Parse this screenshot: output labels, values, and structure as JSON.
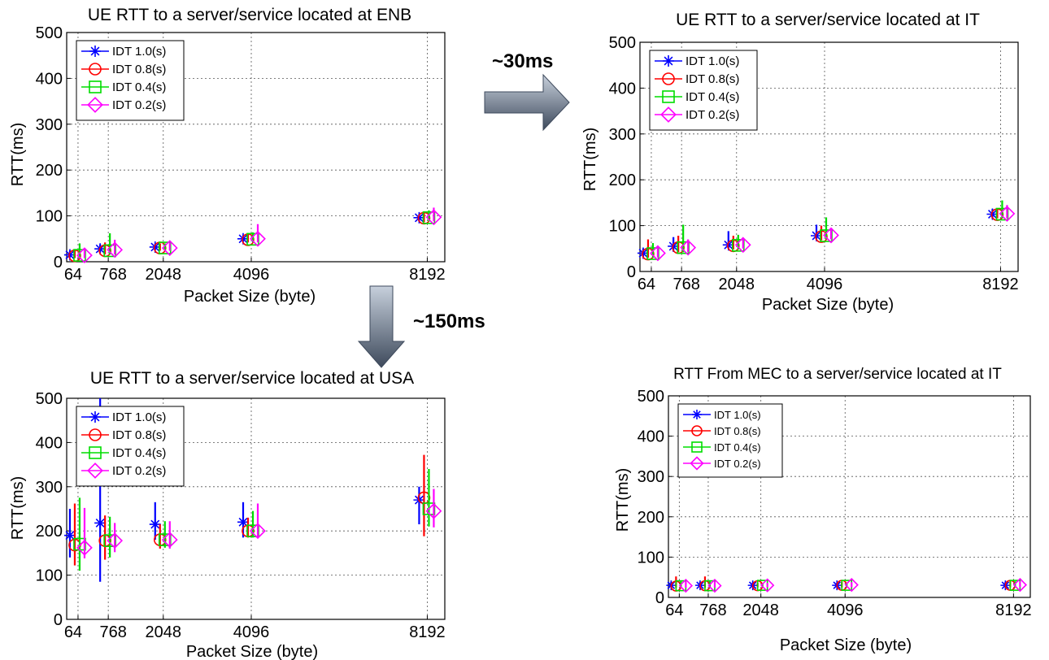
{
  "annotations": {
    "right_arrow_label": "~30ms",
    "down_arrow_label": "~150ms"
  },
  "colors": {
    "series": [
      "#0000ff",
      "#ff0000",
      "#00dd00",
      "#ff00ff"
    ],
    "arrow_fill_dark": "#3e4a5c",
    "arrow_fill_light": "#c7d0dc"
  },
  "chart_data": [
    {
      "id": "enb",
      "type": "scatter",
      "title": "UE  RTT to a server/service located at ENB",
      "xlabel": "Packet Size (byte)",
      "ylabel": "RTT(ms)",
      "xticks": [
        64,
        768,
        2048,
        4096,
        8192
      ],
      "xtick_labels": [
        "64",
        "768",
        "2048",
        "4096",
        "8192"
      ],
      "xlim": [
        -200,
        8600
      ],
      "ylim": [
        0,
        500
      ],
      "yticks": [
        0,
        100,
        200,
        300,
        400,
        500
      ],
      "grid": true,
      "legend_position": "top-left",
      "series": [
        {
          "name": "IDT 1.0(s)",
          "marker": "star",
          "x": [
            64,
            768,
            2048,
            4096,
            8192
          ],
          "y": [
            15,
            28,
            32,
            50,
            96
          ],
          "high": [
            24,
            38,
            38,
            58,
            104
          ],
          "low": [
            10,
            20,
            26,
            44,
            88
          ]
        },
        {
          "name": "IDT 0.8(s)",
          "marker": "circle",
          "x": [
            64,
            768,
            2048,
            4096,
            8192
          ],
          "y": [
            13,
            24,
            30,
            48,
            95
          ],
          "high": [
            26,
            42,
            40,
            60,
            110
          ],
          "low": [
            8,
            16,
            24,
            42,
            86
          ]
        },
        {
          "name": "IDT 0.4(s)",
          "marker": "square",
          "x": [
            64,
            768,
            2048,
            4096,
            8192
          ],
          "y": [
            14,
            24,
            30,
            49,
            96
          ],
          "high": [
            40,
            62,
            40,
            64,
            112
          ],
          "low": [
            8,
            16,
            24,
            42,
            88
          ]
        },
        {
          "name": "IDT 0.2(s)",
          "marker": "diamond",
          "x": [
            64,
            768,
            2048,
            4096,
            8192
          ],
          "y": [
            14,
            26,
            30,
            50,
            97
          ],
          "high": [
            30,
            48,
            42,
            82,
            118
          ],
          "low": [
            8,
            16,
            24,
            42,
            88
          ]
        }
      ]
    },
    {
      "id": "it",
      "type": "scatter",
      "title": "UE  RTT to a server/service located at IT",
      "xlabel": "Packet Size (byte)",
      "ylabel": "RTT(ms)",
      "xticks": [
        64,
        768,
        2048,
        4096,
        8192
      ],
      "xtick_labels": [
        "64",
        "768",
        "2048",
        "4096",
        "8192"
      ],
      "xlim": [
        -200,
        8600
      ],
      "ylim": [
        0,
        500
      ],
      "yticks": [
        0,
        100,
        200,
        300,
        400,
        500
      ],
      "grid": true,
      "legend_position": "top-left",
      "series": [
        {
          "name": "IDT 1.0(s)",
          "marker": "star",
          "x": [
            64,
            768,
            2048,
            4096,
            8192
          ],
          "y": [
            40,
            55,
            58,
            78,
            125
          ],
          "high": [
            50,
            75,
            88,
            102,
            136
          ],
          "low": [
            32,
            44,
            50,
            70,
            116
          ]
        },
        {
          "name": "IDT 0.8(s)",
          "marker": "circle",
          "x": [
            64,
            768,
            2048,
            4096,
            8192
          ],
          "y": [
            38,
            52,
            56,
            76,
            124
          ],
          "high": [
            70,
            78,
            78,
            100,
            138
          ],
          "low": [
            30,
            42,
            48,
            68,
            116
          ]
        },
        {
          "name": "IDT 0.4(s)",
          "marker": "square",
          "x": [
            64,
            768,
            2048,
            4096,
            8192
          ],
          "y": [
            39,
            52,
            57,
            78,
            125
          ],
          "high": [
            62,
            102,
            80,
            118,
            155
          ],
          "low": [
            30,
            42,
            48,
            70,
            116
          ]
        },
        {
          "name": "IDT 0.2(s)",
          "marker": "diamond",
          "x": [
            64,
            768,
            2048,
            4096,
            8192
          ],
          "y": [
            40,
            52,
            58,
            79,
            126
          ],
          "high": [
            56,
            70,
            72,
            92,
            145
          ],
          "low": [
            30,
            42,
            50,
            70,
            116
          ]
        }
      ]
    },
    {
      "id": "usa",
      "type": "scatter",
      "title": "UE  RTT to a server/service located at USA",
      "xlabel": "Packet Size (byte)",
      "ylabel": "RTT(ms)",
      "xticks": [
        64,
        768,
        2048,
        4096,
        8192
      ],
      "xtick_labels": [
        "64",
        "768",
        "2048",
        "4096",
        "8192"
      ],
      "xlim": [
        -200,
        8600
      ],
      "ylim": [
        0,
        500
      ],
      "yticks": [
        0,
        100,
        200,
        300,
        400,
        500
      ],
      "grid": true,
      "legend_position": "top-left",
      "series": [
        {
          "name": "IDT 1.0(s)",
          "marker": "star",
          "x": [
            64,
            768,
            2048,
            4096,
            8192
          ],
          "y": [
            190,
            218,
            215,
            220,
            270
          ],
          "high": [
            250,
            500,
            265,
            265,
            300
          ],
          "low": [
            140,
            85,
            180,
            185,
            215
          ]
        },
        {
          "name": "IDT 0.8(s)",
          "marker": "circle",
          "x": [
            64,
            768,
            2048,
            4096,
            8192
          ],
          "y": [
            168,
            178,
            180,
            200,
            275
          ],
          "high": [
            262,
            235,
            215,
            230,
            372
          ],
          "low": [
            122,
            135,
            160,
            185,
            188
          ]
        },
        {
          "name": "IDT 0.4(s)",
          "marker": "square",
          "x": [
            64,
            768,
            2048,
            4096,
            8192
          ],
          "y": [
            170,
            178,
            180,
            200,
            250
          ],
          "high": [
            275,
            232,
            222,
            245,
            340
          ],
          "low": [
            110,
            140,
            162,
            185,
            210
          ]
        },
        {
          "name": "IDT 0.2(s)",
          "marker": "diamond",
          "x": [
            64,
            768,
            2048,
            4096,
            8192
          ],
          "y": [
            162,
            178,
            180,
            200,
            245
          ],
          "high": [
            252,
            218,
            222,
            262,
            295
          ],
          "low": [
            138,
            152,
            160,
            185,
            208
          ]
        }
      ]
    },
    {
      "id": "mec",
      "type": "scatter",
      "title": "RTT From MEC to a server/service located at IT",
      "xlabel": "Packet Size (byte)",
      "ylabel": "RTT(ms)",
      "xticks": [
        64,
        768,
        2048,
        4096,
        8192
      ],
      "xtick_labels": [
        "64",
        "768",
        "2048",
        "4096",
        "8192"
      ],
      "xlim": [
        -200,
        8600
      ],
      "ylim": [
        0,
        500
      ],
      "yticks": [
        0,
        100,
        200,
        300,
        400,
        500
      ],
      "grid": true,
      "legend_position": "top-left",
      "series": [
        {
          "name": "IDT 1.0(s)",
          "marker": "star",
          "x": [
            64,
            768,
            2048,
            4096,
            8192
          ],
          "y": [
            30,
            30,
            30,
            30,
            30
          ],
          "high": [
            38,
            38,
            36,
            36,
            38
          ],
          "low": [
            26,
            26,
            26,
            26,
            26
          ]
        },
        {
          "name": "IDT 0.8(s)",
          "marker": "circle",
          "x": [
            64,
            768,
            2048,
            4096,
            8192
          ],
          "y": [
            28,
            29,
            29,
            30,
            30
          ],
          "high": [
            52,
            52,
            36,
            38,
            40
          ],
          "low": [
            24,
            24,
            25,
            25,
            25
          ]
        },
        {
          "name": "IDT 0.4(s)",
          "marker": "square",
          "x": [
            64,
            768,
            2048,
            4096,
            8192
          ],
          "y": [
            29,
            29,
            30,
            30,
            30
          ],
          "high": [
            42,
            42,
            34,
            36,
            40
          ],
          "low": [
            24,
            24,
            25,
            25,
            25
          ]
        },
        {
          "name": "IDT 0.2(s)",
          "marker": "diamond",
          "x": [
            64,
            768,
            2048,
            4096,
            8192
          ],
          "y": [
            29,
            29,
            30,
            31,
            31
          ],
          "high": [
            40,
            40,
            36,
            38,
            40
          ],
          "low": [
            24,
            24,
            25,
            25,
            25
          ]
        }
      ]
    }
  ]
}
